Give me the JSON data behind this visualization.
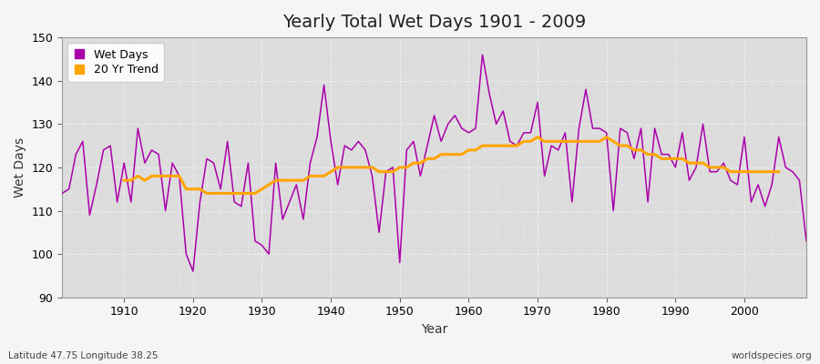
{
  "title": "Yearly Total Wet Days 1901 - 2009",
  "xlabel": "Year",
  "ylabel": "Wet Days",
  "footnote_left": "Latitude 47.75 Longitude 38.25",
  "footnote_right": "worldspecies.org",
  "ylim": [
    90,
    150
  ],
  "xlim": [
    1901,
    2009
  ],
  "plot_bg_color": "#e0e0e0",
  "fig_bg_color": "#f0f0f0",
  "wet_days_color": "#aa00aa",
  "trend_color": "#ffa500",
  "years": [
    1901,
    1902,
    1903,
    1904,
    1905,
    1906,
    1907,
    1908,
    1909,
    1910,
    1911,
    1912,
    1913,
    1914,
    1915,
    1916,
    1917,
    1918,
    1919,
    1920,
    1921,
    1922,
    1923,
    1924,
    1925,
    1926,
    1927,
    1928,
    1929,
    1930,
    1931,
    1932,
    1933,
    1934,
    1935,
    1936,
    1937,
    1938,
    1939,
    1940,
    1941,
    1942,
    1943,
    1944,
    1945,
    1946,
    1947,
    1948,
    1949,
    1950,
    1951,
    1952,
    1953,
    1954,
    1955,
    1956,
    1957,
    1958,
    1959,
    1960,
    1961,
    1962,
    1963,
    1964,
    1965,
    1966,
    1967,
    1968,
    1969,
    1970,
    1971,
    1972,
    1973,
    1974,
    1975,
    1976,
    1977,
    1978,
    1979,
    1980,
    1981,
    1982,
    1983,
    1984,
    1985,
    1986,
    1987,
    1988,
    1989,
    1990,
    1991,
    1992,
    1993,
    1994,
    1995,
    1996,
    1997,
    1998,
    1999,
    2000,
    2001,
    2002,
    2003,
    2004,
    2005,
    2006,
    2007,
    2008,
    2009
  ],
  "wet_days": [
    114,
    115,
    123,
    126,
    109,
    116,
    124,
    125,
    112,
    121,
    112,
    129,
    121,
    124,
    123,
    110,
    121,
    118,
    100,
    96,
    112,
    122,
    121,
    115,
    126,
    112,
    111,
    121,
    103,
    102,
    100,
    121,
    108,
    112,
    116,
    108,
    121,
    127,
    139,
    126,
    116,
    125,
    124,
    126,
    124,
    118,
    105,
    119,
    120,
    98,
    124,
    126,
    118,
    125,
    132,
    126,
    130,
    132,
    129,
    128,
    129,
    146,
    137,
    130,
    133,
    126,
    125,
    128,
    128,
    135,
    118,
    125,
    124,
    128,
    112,
    129,
    138,
    129,
    129,
    128,
    110,
    129,
    128,
    122,
    129,
    112,
    129,
    123,
    123,
    120,
    128,
    117,
    120,
    130,
    119,
    119,
    121,
    117,
    116,
    127,
    112,
    116,
    111,
    116,
    127,
    120,
    119,
    117,
    103
  ],
  "trend": [
    null,
    null,
    null,
    null,
    null,
    null,
    null,
    null,
    null,
    117,
    117,
    118,
    117,
    118,
    118,
    118,
    118,
    118,
    115,
    115,
    115,
    114,
    114,
    114,
    114,
    114,
    114,
    114,
    114,
    115,
    116,
    117,
    117,
    117,
    117,
    117,
    118,
    118,
    118,
    119,
    120,
    120,
    120,
    120,
    120,
    120,
    119,
    119,
    119,
    120,
    120,
    121,
    121,
    122,
    122,
    123,
    123,
    123,
    123,
    124,
    124,
    125,
    125,
    125,
    125,
    125,
    125,
    126,
    126,
    127,
    126,
    126,
    126,
    126,
    126,
    126,
    126,
    126,
    126,
    127,
    126,
    125,
    125,
    124,
    124,
    123,
    123,
    122,
    122,
    122,
    122,
    121,
    121,
    121,
    120,
    120,
    120,
    119,
    119,
    119,
    119,
    119,
    119,
    119,
    119,
    null,
    null,
    null,
    null
  ]
}
